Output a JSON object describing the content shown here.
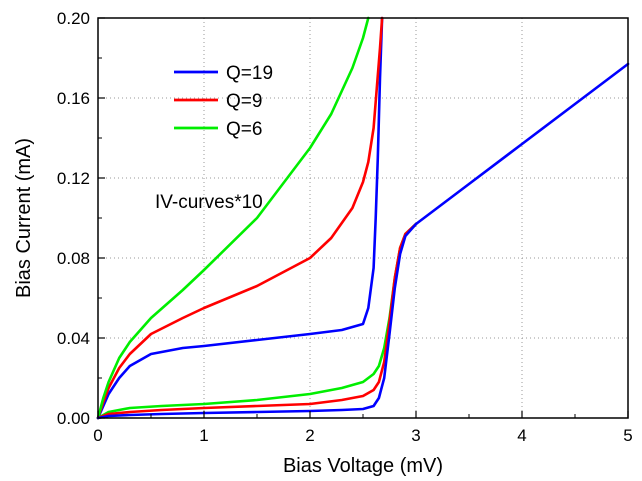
{
  "chart_data": {
    "type": "line",
    "xlabel": "Bias Voltage (mV)",
    "ylabel": "Bias Current (mA)",
    "xlim": [
      0,
      5
    ],
    "ylim": [
      0,
      0.2
    ],
    "x_ticks": [
      "0",
      "1",
      "2",
      "3",
      "4",
      "5"
    ],
    "y_ticks": [
      "0.00",
      "0.04",
      "0.08",
      "0.12",
      "0.16",
      "0.20"
    ],
    "grid": true,
    "legend_position": "top-left",
    "annotation": "IV-curves*10",
    "series": [
      {
        "name": "Q=19",
        "color": "#0000ff",
        "x": [
          0,
          0.05,
          0.1,
          0.2,
          0.3,
          0.5,
          0.8,
          1.0,
          1.5,
          2.0,
          2.3,
          2.5,
          2.55,
          2.6,
          2.62,
          2.64,
          2.66,
          2.68
        ],
        "y": [
          0,
          0.006,
          0.012,
          0.02,
          0.026,
          0.032,
          0.035,
          0.036,
          0.039,
          0.042,
          0.044,
          0.047,
          0.055,
          0.075,
          0.1,
          0.13,
          0.17,
          0.2
        ]
      },
      {
        "name": "Q=9",
        "color": "#ff0000",
        "x": [
          0,
          0.05,
          0.1,
          0.2,
          0.3,
          0.5,
          0.8,
          1.0,
          1.5,
          2.0,
          2.2,
          2.4,
          2.5,
          2.55,
          2.6,
          2.63,
          2.66,
          2.68
        ],
        "y": [
          0,
          0.008,
          0.015,
          0.025,
          0.032,
          0.042,
          0.05,
          0.055,
          0.066,
          0.08,
          0.09,
          0.105,
          0.118,
          0.128,
          0.145,
          0.165,
          0.185,
          0.2
        ]
      },
      {
        "name": "Q=6",
        "color": "#00ee00",
        "x": [
          0,
          0.05,
          0.1,
          0.2,
          0.3,
          0.5,
          0.8,
          1.0,
          1.5,
          2.0,
          2.2,
          2.4,
          2.5,
          2.55
        ],
        "y": [
          0,
          0.01,
          0.018,
          0.03,
          0.038,
          0.05,
          0.064,
          0.074,
          0.1,
          0.135,
          0.152,
          0.175,
          0.19,
          0.2
        ]
      },
      {
        "name": "",
        "color": "#00ee00",
        "x": [
          0,
          0.1,
          0.3,
          0.6,
          1.0,
          1.5,
          2.0,
          2.3,
          2.5,
          2.6,
          2.65,
          2.7,
          2.75,
          2.8,
          2.85,
          2.9,
          3.0
        ],
        "y": [
          0,
          0.003,
          0.005,
          0.006,
          0.007,
          0.009,
          0.012,
          0.015,
          0.018,
          0.022,
          0.026,
          0.035,
          0.05,
          0.07,
          0.085,
          0.092,
          0.097
        ]
      },
      {
        "name": "",
        "color": "#ff0000",
        "x": [
          0,
          0.1,
          0.3,
          0.6,
          1.0,
          1.5,
          2.0,
          2.3,
          2.5,
          2.6,
          2.65,
          2.7,
          2.75,
          2.8,
          2.85,
          2.9,
          3.0
        ],
        "y": [
          0,
          0.002,
          0.003,
          0.004,
          0.005,
          0.006,
          0.007,
          0.009,
          0.011,
          0.014,
          0.018,
          0.028,
          0.048,
          0.07,
          0.085,
          0.092,
          0.097
        ]
      },
      {
        "name": "",
        "color": "#0000ff",
        "x": [
          0,
          0.1,
          0.3,
          0.6,
          1.0,
          1.5,
          2.0,
          2.3,
          2.5,
          2.6,
          2.65,
          2.7,
          2.75,
          2.8,
          2.85,
          2.9,
          3.0,
          3.5,
          4.0,
          4.5,
          5.0
        ],
        "y": [
          0,
          0.001,
          0.0015,
          0.002,
          0.0025,
          0.003,
          0.0035,
          0.004,
          0.0045,
          0.006,
          0.01,
          0.02,
          0.042,
          0.065,
          0.082,
          0.091,
          0.097,
          0.117,
          0.137,
          0.157,
          0.177
        ]
      }
    ]
  }
}
